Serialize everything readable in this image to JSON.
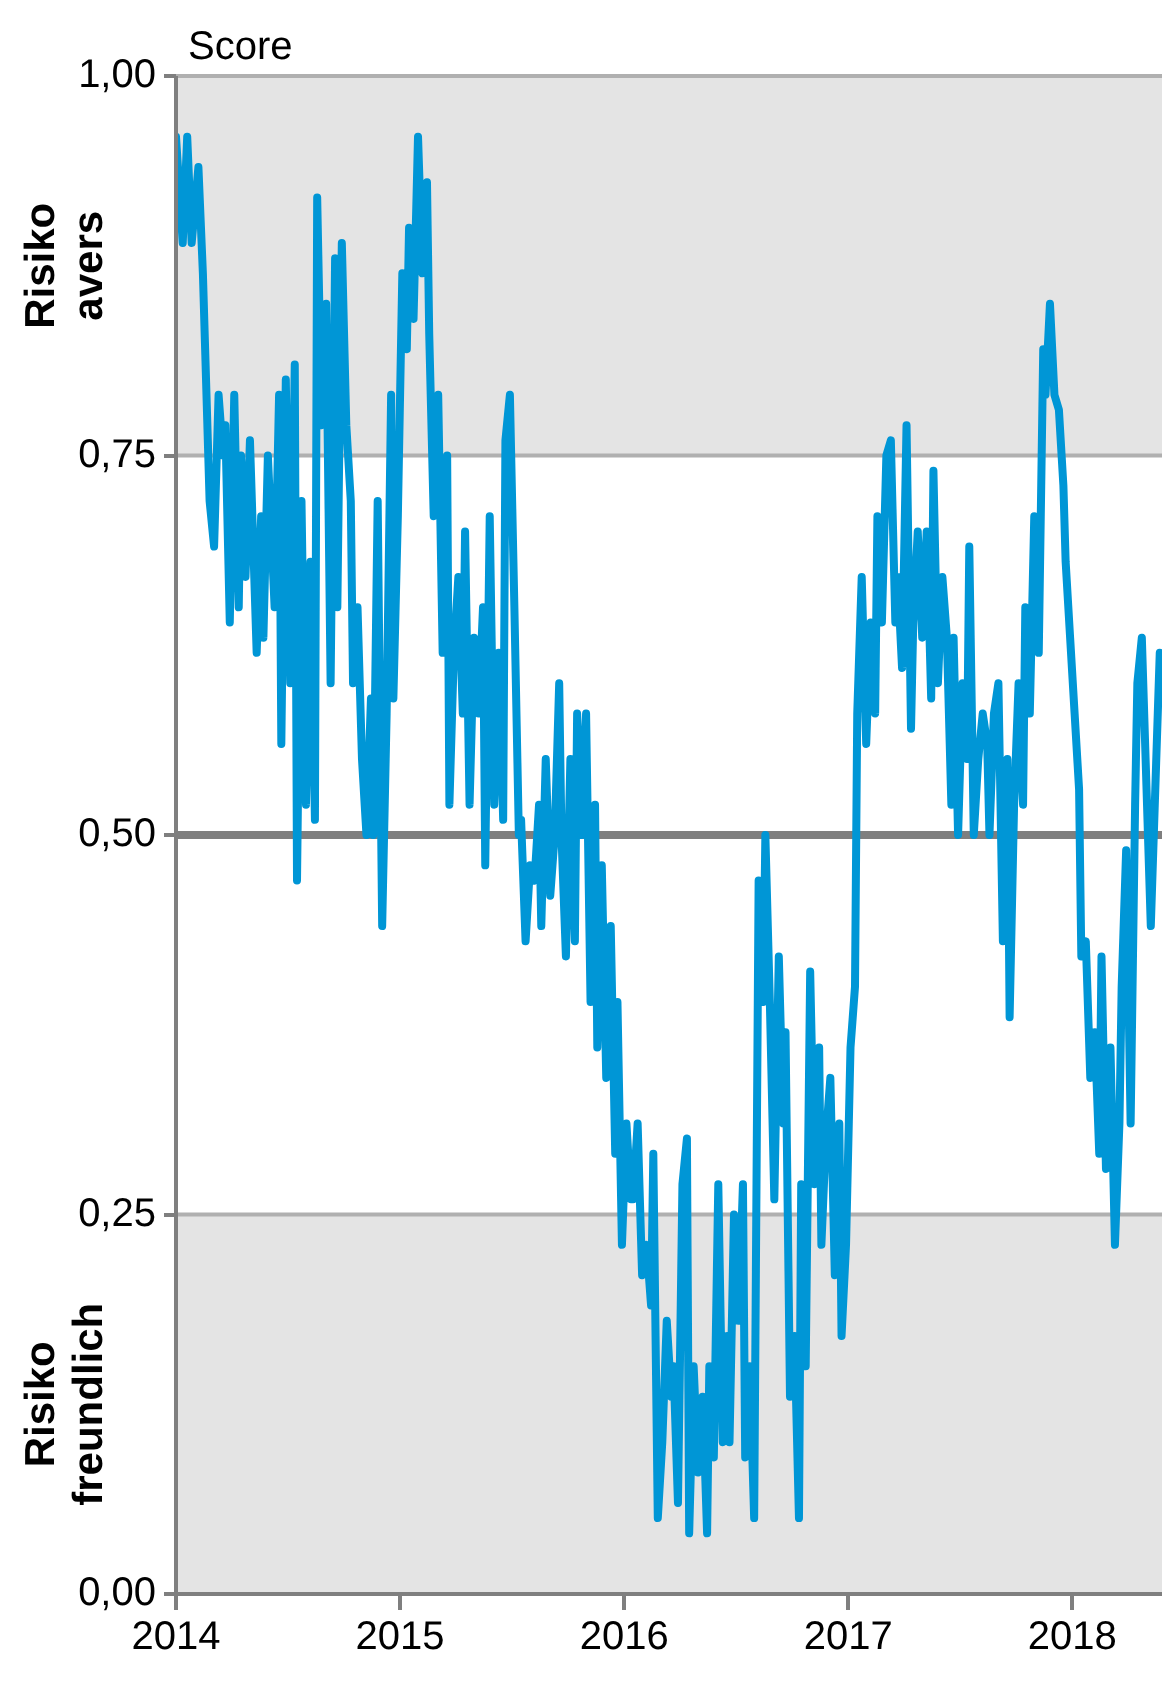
{
  "chart_data": {
    "type": "line",
    "ylabel": "Score",
    "x": [
      2014.0,
      2014.03,
      2014.05,
      2014.07,
      2014.1,
      2014.12,
      2014.13,
      2014.15,
      2014.17,
      2014.19,
      2014.21,
      2014.22,
      2014.24,
      2014.26,
      2014.28,
      2014.29,
      2014.31,
      2014.33,
      2014.36,
      2014.38,
      2014.39,
      2014.41,
      2014.44,
      2014.46,
      2014.47,
      2014.49,
      2014.51,
      2014.53,
      2014.54,
      2014.56,
      2014.58,
      2014.6,
      2014.62,
      2014.63,
      2014.65,
      2014.67,
      2014.69,
      2014.71,
      2014.72,
      2014.74,
      2014.76,
      2014.78,
      2014.79,
      2014.81,
      2014.83,
      2014.85,
      2014.87,
      2014.88,
      2014.9,
      2014.92,
      2014.94,
      2014.96,
      2014.97,
      2014.99,
      2015.01,
      2015.03,
      2015.04,
      2015.06,
      2015.08,
      2015.1,
      2015.12,
      2015.13,
      2015.15,
      2015.17,
      2015.19,
      2015.21,
      2015.22,
      2015.24,
      2015.26,
      2015.28,
      2015.29,
      2015.31,
      2015.33,
      2015.35,
      2015.37,
      2015.38,
      2015.4,
      2015.42,
      2015.44,
      2015.46,
      2015.47,
      2015.49,
      2015.51,
      2015.53,
      2015.54,
      2015.56,
      2015.58,
      2015.6,
      2015.62,
      2015.63,
      2015.65,
      2015.67,
      2015.69,
      2015.71,
      2015.72,
      2015.74,
      2015.76,
      2015.78,
      2015.79,
      2015.81,
      2015.83,
      2015.85,
      2015.87,
      2015.88,
      2015.9,
      2015.92,
      2015.94,
      2015.96,
      2015.97,
      2015.99,
      2016.01,
      2016.03,
      2016.04,
      2016.06,
      2016.08,
      2016.1,
      2016.12,
      2016.13,
      2016.15,
      2016.17,
      2016.19,
      2016.21,
      2016.22,
      2016.24,
      2016.26,
      2016.28,
      2016.29,
      2016.31,
      2016.33,
      2016.35,
      2016.37,
      2016.38,
      2016.4,
      2016.42,
      2016.44,
      2016.46,
      2016.47,
      2016.49,
      2016.51,
      2016.53,
      2016.54,
      2016.56,
      2016.58,
      2016.6,
      2016.62,
      2016.63,
      2016.65,
      2016.67,
      2016.69,
      2016.71,
      2016.72,
      2016.74,
      2016.76,
      2016.78,
      2016.79,
      2016.81,
      2016.83,
      2016.85,
      2016.87,
      2016.88,
      2016.9,
      2016.92,
      2016.94,
      2016.96,
      2016.97,
      2016.99,
      2017.01,
      2017.03,
      2017.04,
      2017.06,
      2017.08,
      2017.1,
      2017.12,
      2017.13,
      2017.15,
      2017.17,
      2017.19,
      2017.21,
      2017.22,
      2017.24,
      2017.26,
      2017.28,
      2017.29,
      2017.31,
      2017.33,
      2017.35,
      2017.37,
      2017.38,
      2017.4,
      2017.42,
      2017.44,
      2017.46,
      2017.47,
      2017.49,
      2017.51,
      2017.53,
      2017.54,
      2017.56,
      2017.58,
      2017.6,
      2017.62,
      2017.63,
      2017.65,
      2017.67,
      2017.69,
      2017.71,
      2017.72,
      2017.74,
      2017.76,
      2017.78,
      2017.79,
      2017.81,
      2017.83,
      2017.85,
      2017.87,
      2017.88,
      2017.9,
      2017.92,
      2017.94,
      2017.96,
      2017.97,
      2017.99,
      2018.01,
      2018.03,
      2018.04,
      2018.06,
      2018.08,
      2018.1,
      2018.12,
      2018.13,
      2018.15,
      2018.17,
      2018.19,
      2018.21,
      2018.22,
      2018.24,
      2018.26,
      2018.28,
      2018.29,
      2018.31,
      2018.35,
      2018.39
    ],
    "series": [
      {
        "color": "#0096d6",
        "values": [
          0.96,
          0.89,
          0.96,
          0.89,
          0.94,
          0.87,
          0.82,
          0.72,
          0.69,
          0.79,
          0.75,
          0.77,
          0.64,
          0.79,
          0.65,
          0.75,
          0.67,
          0.76,
          0.62,
          0.71,
          0.63,
          0.75,
          0.65,
          0.79,
          0.56,
          0.8,
          0.6,
          0.81,
          0.47,
          0.72,
          0.52,
          0.68,
          0.51,
          0.92,
          0.77,
          0.85,
          0.6,
          0.88,
          0.65,
          0.89,
          0.77,
          0.72,
          0.6,
          0.65,
          0.55,
          0.5,
          0.59,
          0.5,
          0.72,
          0.44,
          0.58,
          0.79,
          0.59,
          0.71,
          0.87,
          0.82,
          0.9,
          0.84,
          0.96,
          0.87,
          0.93,
          0.83,
          0.71,
          0.79,
          0.62,
          0.75,
          0.52,
          0.62,
          0.67,
          0.58,
          0.7,
          0.52,
          0.63,
          0.58,
          0.65,
          0.48,
          0.71,
          0.52,
          0.62,
          0.51,
          0.76,
          0.79,
          0.65,
          0.5,
          0.51,
          0.43,
          0.48,
          0.47,
          0.52,
          0.44,
          0.55,
          0.46,
          0.5,
          0.6,
          0.5,
          0.42,
          0.55,
          0.43,
          0.58,
          0.5,
          0.58,
          0.39,
          0.52,
          0.36,
          0.48,
          0.34,
          0.44,
          0.29,
          0.39,
          0.23,
          0.31,
          0.26,
          0.26,
          0.31,
          0.21,
          0.23,
          0.19,
          0.29,
          0.05,
          0.1,
          0.18,
          0.13,
          0.15,
          0.06,
          0.27,
          0.3,
          0.04,
          0.15,
          0.08,
          0.13,
          0.04,
          0.15,
          0.09,
          0.27,
          0.1,
          0.17,
          0.1,
          0.25,
          0.18,
          0.27,
          0.09,
          0.15,
          0.05,
          0.47,
          0.39,
          0.5,
          0.39,
          0.26,
          0.42,
          0.31,
          0.37,
          0.13,
          0.17,
          0.05,
          0.27,
          0.15,
          0.41,
          0.27,
          0.36,
          0.23,
          0.3,
          0.34,
          0.21,
          0.31,
          0.17,
          0.23,
          0.36,
          0.4,
          0.58,
          0.67,
          0.56,
          0.64,
          0.58,
          0.71,
          0.64,
          0.75,
          0.76,
          0.64,
          0.67,
          0.61,
          0.77,
          0.57,
          0.64,
          0.7,
          0.63,
          0.7,
          0.59,
          0.74,
          0.6,
          0.67,
          0.63,
          0.52,
          0.63,
          0.5,
          0.6,
          0.55,
          0.69,
          0.5,
          0.55,
          0.58,
          0.56,
          0.5,
          0.58,
          0.6,
          0.43,
          0.55,
          0.38,
          0.52,
          0.6,
          0.52,
          0.65,
          0.58,
          0.71,
          0.62,
          0.82,
          0.79,
          0.85,
          0.79,
          0.78,
          0.73,
          0.68,
          0.63,
          0.58,
          0.53,
          0.42,
          0.43,
          0.34,
          0.37,
          0.29,
          0.42,
          0.28,
          0.36,
          0.23,
          0.31,
          0.4,
          0.49,
          0.31,
          0.52,
          0.6,
          0.63,
          0.44,
          0.62
        ]
      }
    ],
    "xlim": [
      2014,
      2018.4
    ],
    "xticks": [
      2014,
      2015,
      2016,
      2017,
      2018
    ],
    "ylim": [
      0,
      1
    ],
    "yticks": [
      {
        "value": 0,
        "label": "0,00"
      },
      {
        "value": 0.25,
        "label": "0,25"
      },
      {
        "value": 0.5,
        "label": "0,50"
      },
      {
        "value": 0.75,
        "label": "0,75"
      },
      {
        "value": 1,
        "label": "1,00"
      }
    ],
    "bands": [
      {
        "axis": "y",
        "from": 0.75,
        "to": 1,
        "label": "Risiko avers",
        "color": "#e4e4e4"
      },
      {
        "axis": "y",
        "from": 0,
        "to": 0.25,
        "label": "Risiko freundlich",
        "color": "#e4e4e4"
      }
    ],
    "ref_lines": [
      {
        "axis": "y",
        "value": 0.5,
        "color": "#7f7f7f"
      }
    ],
    "grid": "y",
    "legend": false,
    "marker": "none",
    "line_style": "solid"
  }
}
